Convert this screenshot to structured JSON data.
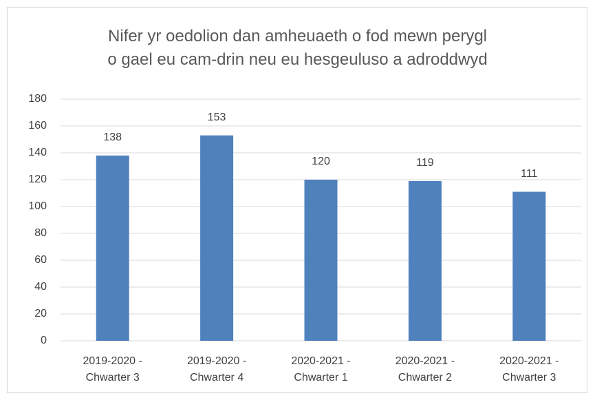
{
  "chart_data": {
    "type": "bar",
    "title": "Nifer yr oedolion dan amheuaeth o fod mewn perygl\no gael eu cam-drin neu eu hesgeuluso a adroddwyd",
    "categories": [
      "2019-2020 -\nChwarter 3",
      "2019-2020 -\nChwarter 4",
      "2020-2021 -\nChwarter 1",
      "2020-2021 -\nChwarter 2",
      "2020-2021 -\nChwarter 3"
    ],
    "values": [
      138,
      153,
      120,
      119,
      111
    ],
    "color": "#4f81bd",
    "ylim": [
      0,
      180
    ],
    "yticks": [
      0,
      20,
      40,
      60,
      80,
      100,
      120,
      140,
      160,
      180
    ],
    "grid": true,
    "data_labels": true
  }
}
